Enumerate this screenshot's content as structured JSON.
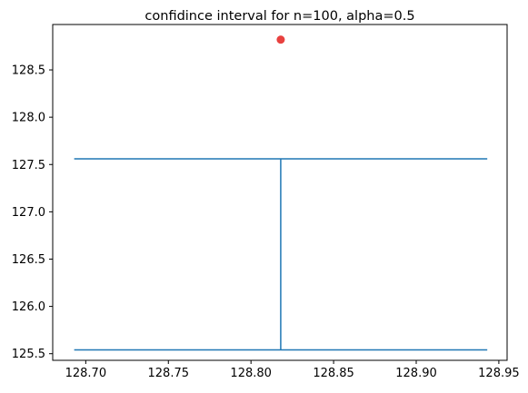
{
  "chart_data": {
    "type": "line",
    "title": "confidince interval for n=100, alpha=0.5",
    "xlabel": "",
    "ylabel": "",
    "xlim": [
      128.68,
      128.955
    ],
    "ylim": [
      125.43,
      128.98
    ],
    "x_ticks": [
      128.7,
      128.75,
      128.8,
      128.85,
      128.9,
      128.95
    ],
    "x_tick_labels": [
      "128.70",
      "128.75",
      "128.80",
      "128.85",
      "128.90",
      "128.95"
    ],
    "y_ticks": [
      125.5,
      126.0,
      126.5,
      127.0,
      127.5,
      128.0,
      128.5
    ],
    "y_tick_labels": [
      "125.5",
      "126.0",
      "126.5",
      "127.0",
      "127.5",
      "128.0",
      "128.5"
    ],
    "grid": false,
    "series": [
      {
        "kind": "errorbar",
        "color": "#1f77b4",
        "x_center": 128.818,
        "cap_x_range": [
          128.693,
          128.943
        ],
        "lower": 125.54,
        "upper": 127.56
      },
      {
        "kind": "point",
        "color": "#e8413f",
        "x": 128.818,
        "y": 128.82
      }
    ]
  }
}
